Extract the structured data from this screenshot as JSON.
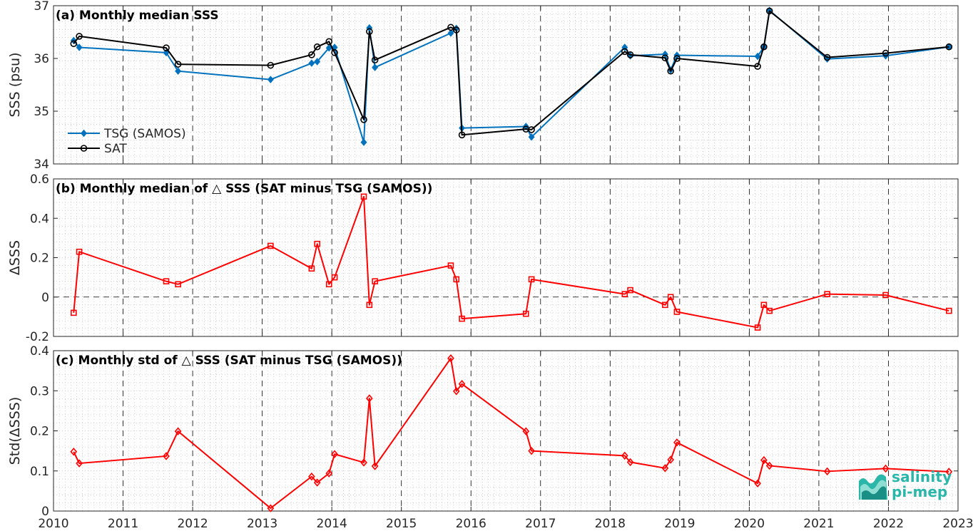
{
  "figure": {
    "xaxis": {
      "range": [
        2010,
        2023
      ],
      "ticks": [
        "2010",
        "2011",
        "2012",
        "2013",
        "2014",
        "2015",
        "2016",
        "2017",
        "2018",
        "2019",
        "2020",
        "2021",
        "2022",
        "2023"
      ]
    },
    "colors": {
      "tsg": "#0072bd",
      "sat": "#000000",
      "delta": "#ff0000"
    }
  },
  "logo": {
    "line1": "salinity",
    "line2": "pi-mep"
  },
  "chart_data": [
    {
      "type": "line",
      "title": "(a) Monthly median SSS",
      "ylabel": "SSS (psu)",
      "ylim": [
        34,
        37
      ],
      "yticks": [
        "34",
        "35",
        "36",
        "37"
      ],
      "legend": {
        "position": "bottom-left",
        "entries": [
          "TSG (SAMOS)",
          "SAT"
        ]
      },
      "series": [
        {
          "name": "TSG (SAMOS)",
          "marker": "diamond",
          "x": [
            2010.29,
            2010.37,
            2011.62,
            2011.79,
            2013.12,
            2013.71,
            2013.79,
            2013.96,
            2014.04,
            2014.46,
            2014.54,
            2014.62,
            2015.71,
            2015.79,
            2015.87,
            2016.79,
            2016.87,
            2018.21,
            2018.29,
            2018.79,
            2018.87,
            2018.96,
            2020.12,
            2020.21,
            2020.29,
            2021.12,
            2021.96,
            2022.87
          ],
          "y": [
            36.34,
            36.21,
            36.11,
            35.76,
            35.6,
            35.91,
            35.94,
            36.2,
            36.21,
            34.41,
            36.58,
            35.83,
            36.48,
            36.57,
            34.68,
            34.71,
            34.51,
            36.21,
            36.05,
            36.08,
            35.78,
            36.06,
            36.04,
            36.22,
            36.91,
            35.99,
            36.05,
            36.22
          ]
        },
        {
          "name": "SAT",
          "marker": "circle",
          "x": [
            2010.29,
            2010.37,
            2011.62,
            2011.79,
            2013.12,
            2013.71,
            2013.79,
            2013.96,
            2014.04,
            2014.46,
            2014.54,
            2014.62,
            2015.71,
            2015.79,
            2015.87,
            2016.79,
            2016.87,
            2018.21,
            2018.29,
            2018.79,
            2018.87,
            2018.96,
            2020.12,
            2020.21,
            2020.29,
            2021.12,
            2021.96,
            2022.87
          ],
          "y": [
            36.28,
            36.42,
            36.2,
            35.89,
            35.87,
            36.07,
            36.22,
            36.32,
            36.11,
            34.84,
            36.51,
            35.97,
            36.59,
            36.54,
            34.55,
            34.66,
            34.65,
            36.13,
            36.07,
            36.01,
            35.76,
            36.0,
            35.85,
            36.22,
            36.9,
            36.02,
            36.1,
            36.22
          ]
        }
      ]
    },
    {
      "type": "line",
      "title": "(b) Monthly median of △ SSS (SAT minus TSG (SAMOS))",
      "ylabel": "ΔSSS",
      "ylim": [
        -0.2,
        0.6
      ],
      "yticks": [
        "-0.2",
        "0",
        "0.2",
        "0.4",
        "0.6"
      ],
      "zero_line": true,
      "series": [
        {
          "marker": "square",
          "x": [
            2010.29,
            2010.37,
            2011.62,
            2011.79,
            2013.12,
            2013.71,
            2013.79,
            2013.96,
            2014.04,
            2014.46,
            2014.54,
            2014.62,
            2015.71,
            2015.79,
            2015.87,
            2016.79,
            2016.87,
            2018.21,
            2018.29,
            2018.79,
            2018.87,
            2018.96,
            2020.12,
            2020.21,
            2020.29,
            2021.12,
            2021.96,
            2022.87
          ],
          "y": [
            -0.08,
            0.23,
            0.08,
            0.065,
            0.26,
            0.145,
            0.27,
            0.065,
            0.1,
            0.51,
            -0.04,
            0.08,
            0.16,
            0.09,
            -0.11,
            -0.085,
            0.09,
            0.015,
            0.035,
            -0.04,
            0.0,
            -0.075,
            -0.155,
            -0.04,
            -0.07,
            0.015,
            0.01,
            -0.07
          ]
        }
      ]
    },
    {
      "type": "line",
      "title": "(c) Monthly std of △ SSS (SAT minus TSG (SAMOS))",
      "ylabel": "Std(ΔSSS)",
      "ylim": [
        0,
        0.4
      ],
      "yticks": [
        "0",
        "0.1",
        "0.2",
        "0.3",
        "0.4"
      ],
      "series": [
        {
          "marker": "diamond",
          "x": [
            2010.29,
            2010.37,
            2011.62,
            2011.79,
            2013.12,
            2013.71,
            2013.79,
            2013.96,
            2014.04,
            2014.46,
            2014.54,
            2014.62,
            2015.71,
            2015.79,
            2015.87,
            2016.79,
            2016.87,
            2018.21,
            2018.29,
            2018.79,
            2018.87,
            2018.96,
            2020.12,
            2020.21,
            2020.29,
            2021.12,
            2021.96,
            2022.87
          ],
          "y": [
            0.148,
            0.119,
            0.137,
            0.199,
            0.007,
            0.086,
            0.071,
            0.094,
            0.142,
            0.121,
            0.281,
            0.112,
            0.381,
            0.299,
            0.317,
            0.199,
            0.15,
            0.138,
            0.122,
            0.107,
            0.128,
            0.171,
            0.069,
            0.127,
            0.113,
            0.099,
            0.106,
            0.098
          ]
        }
      ]
    }
  ]
}
